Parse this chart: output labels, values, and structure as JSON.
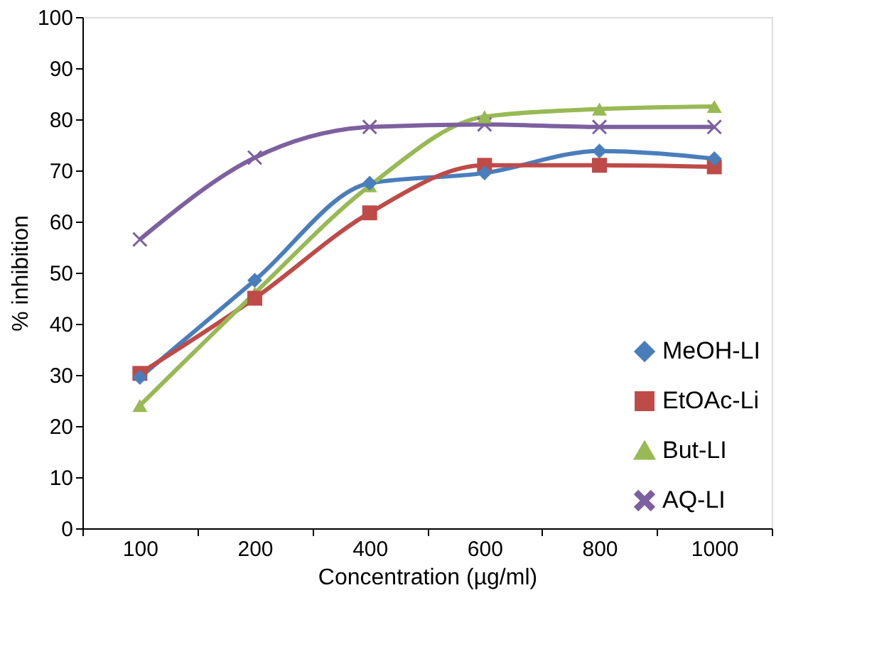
{
  "chart_data": {
    "type": "line",
    "xlabel": "Concentration (µg/ml)",
    "ylabel": "% inhibition",
    "categories": [
      "100",
      "200",
      "400",
      "600",
      "800",
      "1000"
    ],
    "series": [
      {
        "name": "MeOH-LI",
        "color": "#4a7ebb",
        "marker": "diamond",
        "values": [
          29.5,
          48.5,
          67.5,
          69.5,
          73.8,
          72.3
        ]
      },
      {
        "name": "EtOAc-Li",
        "color": "#be4b48",
        "marker": "square",
        "values": [
          30.3,
          45,
          61.7,
          71,
          71,
          70.7
        ]
      },
      {
        "name": "But-LI",
        "color": "#98b954",
        "marker": "triangle",
        "values": [
          24,
          46,
          67,
          80.5,
          82,
          82.5
        ]
      },
      {
        "name": "AQ-LI",
        "color": "#7d60a0",
        "marker": "cross",
        "values": [
          56.5,
          72.5,
          78.5,
          79,
          78.5,
          78.5
        ]
      }
    ],
    "ylim": [
      0,
      100
    ],
    "yticks": [
      0,
      10,
      20,
      30,
      40,
      50,
      60,
      70,
      80,
      90,
      100
    ],
    "grid": false,
    "legend": "bottom right",
    "line_style": "solid"
  }
}
